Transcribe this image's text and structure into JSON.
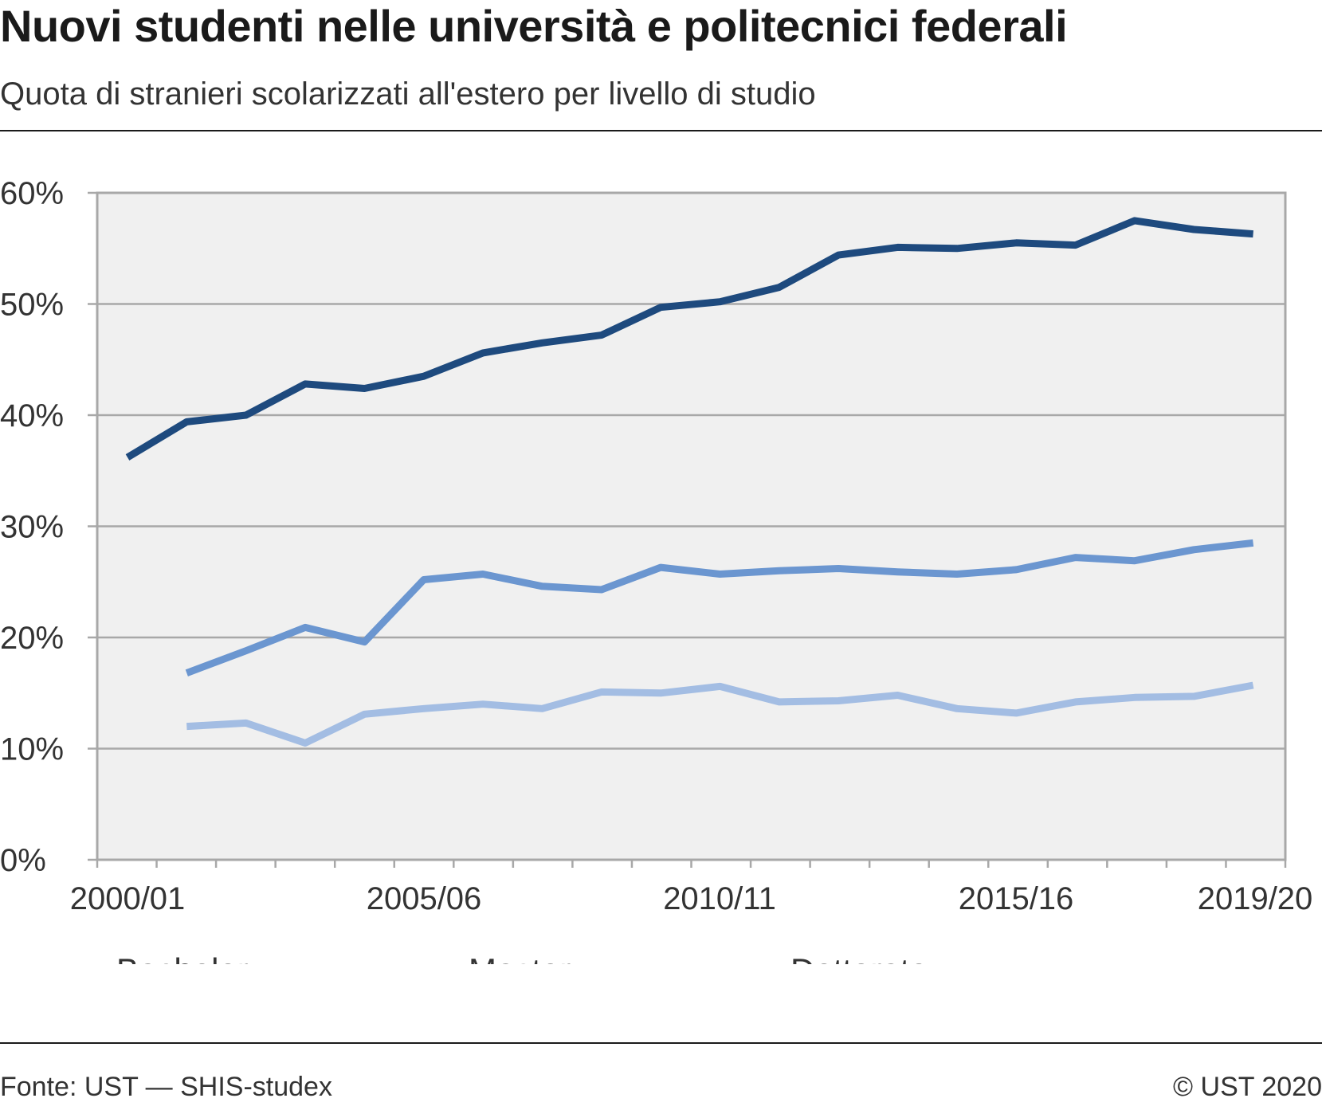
{
  "header": {
    "title": "Nuovi studenti nelle università e politecnici federali",
    "subtitle": "Quota di stranieri scolarizzati all'estero per livello di studio"
  },
  "footer": {
    "source": "Fonte: UST — SHIS-studex",
    "copyright": "© UST 2020"
  },
  "colors": {
    "bachelor": "#a3bde3",
    "master": "#6b96d0",
    "dottorato": "#1e4a7e",
    "plot_bg": "#f0f0f0",
    "grid": "#a8a8a8"
  },
  "chart_data": {
    "type": "line",
    "x": [
      "2000/01",
      "2001/02",
      "2002/03",
      "2003/04",
      "2004/05",
      "2005/06",
      "2006/07",
      "2007/08",
      "2008/09",
      "2009/10",
      "2010/11",
      "2011/12",
      "2012/13",
      "2013/14",
      "2014/15",
      "2015/16",
      "2016/17",
      "2017/18",
      "2018/19",
      "2019/20"
    ],
    "x_tick_labels": [
      "2000/01",
      "2005/06",
      "2010/11",
      "2015/16",
      "2019/20"
    ],
    "ylim": [
      0,
      60
    ],
    "y_ticks": [
      0,
      10,
      20,
      30,
      40,
      50,
      60
    ],
    "y_tick_labels": [
      "0%",
      "10%",
      "20%",
      "30%",
      "40%",
      "50%",
      "60%"
    ],
    "grid": true,
    "legend_position": "bottom",
    "series": [
      {
        "name": "Bachelor",
        "color_key": "bachelor",
        "values": [
          null,
          12.0,
          12.3,
          10.5,
          13.1,
          13.6,
          14.0,
          13.6,
          15.1,
          15.0,
          15.6,
          14.2,
          14.3,
          14.8,
          13.6,
          13.2,
          14.2,
          14.6,
          14.7,
          15.7
        ]
      },
      {
        "name": "Master",
        "color_key": "master",
        "values": [
          null,
          16.8,
          18.8,
          20.9,
          19.6,
          25.2,
          25.7,
          24.6,
          24.3,
          26.3,
          25.7,
          26.0,
          26.2,
          25.9,
          25.7,
          26.1,
          27.2,
          26.9,
          27.9,
          28.5
        ]
      },
      {
        "name": "Dottorato",
        "color_key": "dottorato",
        "values": [
          36.2,
          39.4,
          40.0,
          42.8,
          42.4,
          43.5,
          45.6,
          46.5,
          47.2,
          49.7,
          50.2,
          51.5,
          54.4,
          55.1,
          55.0,
          55.5,
          55.3,
          57.5,
          56.7,
          56.3
        ]
      }
    ]
  }
}
